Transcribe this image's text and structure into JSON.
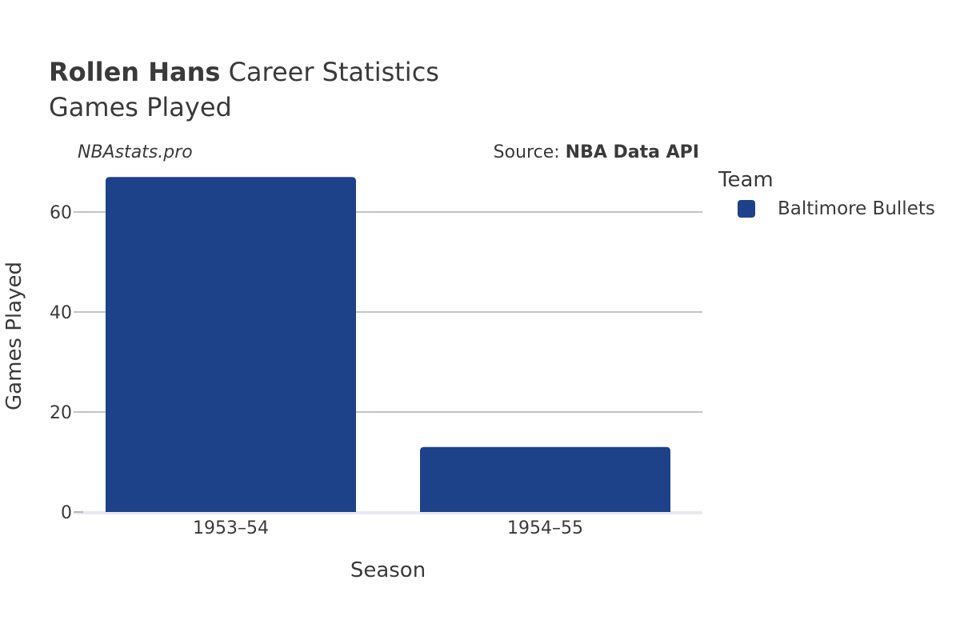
{
  "header": {
    "player_name": "Rollen Hans",
    "title_suffix": "Career Statistics",
    "subtitle": "Games Played"
  },
  "watermark": "NBAstats.pro",
  "source": {
    "prefix": "Source:",
    "name": "NBA Data API"
  },
  "legend": {
    "title": "Team",
    "items": [
      {
        "label": "Baltimore Bullets",
        "color": "#1d4289"
      }
    ]
  },
  "chart_data": {
    "type": "bar",
    "categories": [
      "1953–54",
      "1954–55"
    ],
    "series": [
      {
        "name": "Baltimore Bullets",
        "values": [
          67,
          13
        ],
        "color": "#1d4289"
      }
    ],
    "xlabel": "Season",
    "ylabel": "Games Played",
    "ylim": [
      0,
      70
    ],
    "yticks": [
      0,
      20,
      40,
      60
    ],
    "grid": true,
    "legend_position": "right"
  }
}
